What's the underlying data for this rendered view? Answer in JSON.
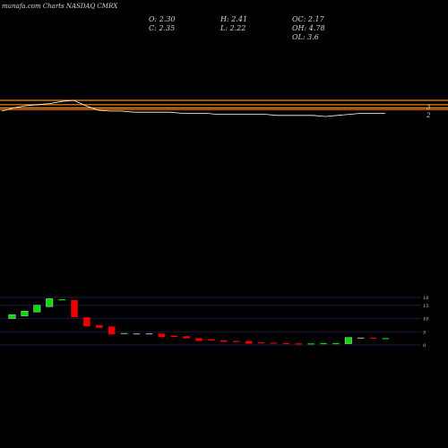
{
  "header": {
    "title": "munafa.com Charts NASDAQ CMRX",
    "open_label": "O: 2.30",
    "close_label": "C: 2.35",
    "high_label": "H: 2.41",
    "low_label": "L: 2.22",
    "oc_label": "OC: 2.17",
    "oh_label": "OH: 4.78",
    "ol_label": "OL: 3.6"
  },
  "colors": {
    "background": "#000000",
    "up": "#00dd00",
    "down": "#ee0000",
    "neutral": "#9a9a9a",
    "ema_line": "#ff8800",
    "price_line": "#ffffff",
    "grid": "#1f1f4a"
  },
  "chart_data": [
    {
      "type": "line",
      "title": "",
      "price_labels": [
        "3",
        "2"
      ],
      "level_lines": [
        3,
        2.6,
        2.3,
        2.15
      ],
      "price": [
        2.0,
        2.3,
        2.5,
        2.6,
        2.7,
        2.9,
        3.0,
        2.5,
        2.1,
        2.0,
        2.0,
        1.9,
        1.9,
        1.9,
        1.9,
        1.8,
        1.8,
        1.8,
        1.7,
        1.7,
        1.7,
        1.7,
        1.7,
        1.6,
        1.6,
        1.6,
        1.6,
        1.5,
        1.6,
        1.7,
        1.8,
        1.8,
        1.8
      ]
    },
    {
      "type": "bar",
      "title": "",
      "series_kind": "volume_candles",
      "y_ticks": [
        0,
        5,
        10,
        15,
        18
      ],
      "ylim": [
        0,
        19
      ],
      "candles": [
        {
          "o": 10.0,
          "c": 11.5,
          "dir": "up"
        },
        {
          "o": 11.0,
          "c": 12.8,
          "dir": "up"
        },
        {
          "o": 12.5,
          "c": 15.0,
          "dir": "up"
        },
        {
          "o": 14.5,
          "c": 17.5,
          "dir": "up"
        },
        {
          "o": 17.3,
          "c": 17.0,
          "dir": "up"
        },
        {
          "o": 17.0,
          "c": 10.5,
          "dir": "down"
        },
        {
          "o": 10.5,
          "c": 7.0,
          "dir": "down"
        },
        {
          "o": 7.5,
          "c": 6.5,
          "dir": "down"
        },
        {
          "o": 7.0,
          "c": 4.0,
          "dir": "down"
        },
        {
          "o": 4.5,
          "c": 4.3,
          "dir": "neutral"
        },
        {
          "o": 4.4,
          "c": 4.3,
          "dir": "neutral"
        },
        {
          "o": 4.4,
          "c": 4.3,
          "dir": "neutral"
        },
        {
          "o": 4.3,
          "c": 3.0,
          "dir": "down"
        },
        {
          "o": 3.5,
          "c": 3.0,
          "dir": "down"
        },
        {
          "o": 3.3,
          "c": 2.5,
          "dir": "down"
        },
        {
          "o": 2.6,
          "c": 1.5,
          "dir": "down"
        },
        {
          "o": 2.2,
          "c": 1.7,
          "dir": "down"
        },
        {
          "o": 1.8,
          "c": 1.2,
          "dir": "down"
        },
        {
          "o": 1.5,
          "c": 1.2,
          "dir": "down"
        },
        {
          "o": 1.5,
          "c": 0.5,
          "dir": "down"
        },
        {
          "o": 1.0,
          "c": 0.8,
          "dir": "down"
        },
        {
          "o": 0.9,
          "c": 0.7,
          "dir": "down"
        },
        {
          "o": 0.7,
          "c": 0.6,
          "dir": "down"
        },
        {
          "o": 0.6,
          "c": 0.5,
          "dir": "down"
        },
        {
          "o": 0.5,
          "c": 0.6,
          "dir": "up"
        },
        {
          "o": 0.6,
          "c": 0.7,
          "dir": "up"
        },
        {
          "o": 0.5,
          "c": 0.7,
          "dir": "up"
        },
        {
          "o": 0.5,
          "c": 2.8,
          "dir": "up"
        },
        {
          "o": 2.7,
          "c": 2.8,
          "dir": "neutral"
        },
        {
          "o": 2.8,
          "c": 2.4,
          "dir": "down"
        },
        {
          "o": 2.6,
          "c": 2.5,
          "dir": "up"
        }
      ]
    }
  ]
}
